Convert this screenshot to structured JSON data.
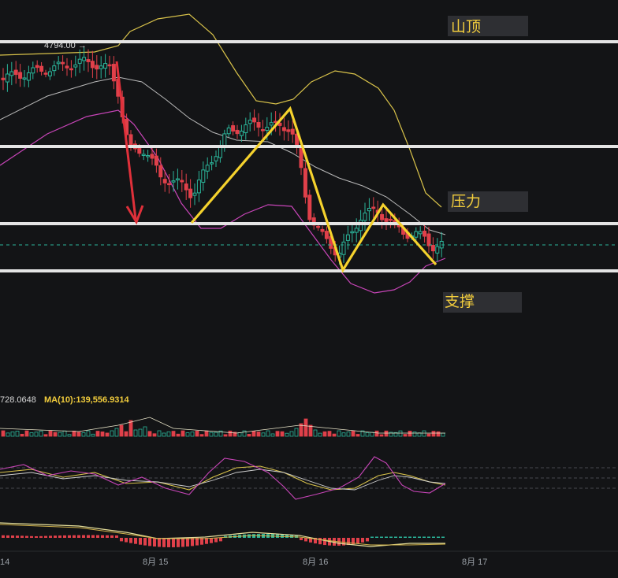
{
  "chart_data": {
    "type": "candlestick",
    "price_marker": {
      "label": "4794.00 →",
      "value": 4794.0
    },
    "zones": [
      {
        "label": "山顶",
        "color": "#f2cd3c"
      },
      {
        "label": "压力",
        "color": "#f2cd3c"
      },
      {
        "label": "支撑",
        "color": "#f2cd3c"
      }
    ],
    "x_ticks": [
      "14",
      "8月 15",
      "8月 16",
      "8月 17"
    ],
    "volume_label": {
      "value_text": "728.0648",
      "ma_text": "MA(10):139,556.9314"
    },
    "colors": {
      "up": "#2bb59a",
      "down": "#e0404a",
      "pattern": "#f5d22d",
      "boll_outer": "#d8c24a",
      "boll_lower": "#c845b8",
      "boll_mid": "#b9b9b9",
      "arrow": "#e0303a"
    }
  }
}
